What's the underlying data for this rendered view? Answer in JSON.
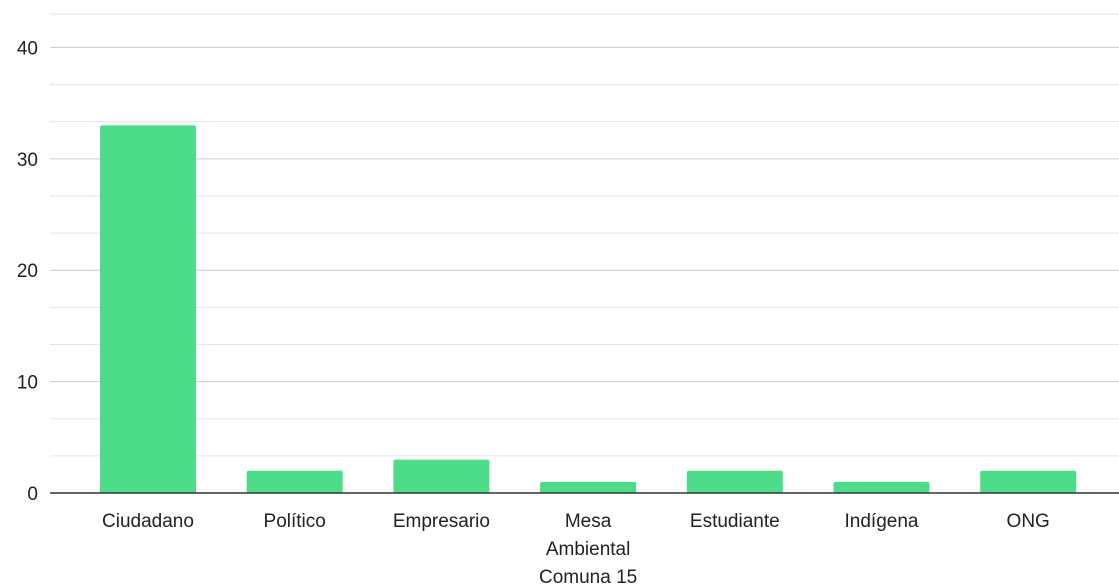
{
  "chart_data": {
    "type": "bar",
    "categories": [
      "Ciudadano",
      "Político",
      "Empresario",
      "Mesa Ambiental Comuna 15",
      "Estudiante",
      "Indígena",
      "ONG"
    ],
    "category_label_lines": [
      [
        "Ciudadano"
      ],
      [
        "Político"
      ],
      [
        "Empresario"
      ],
      [
        "Mesa",
        "Ambiental",
        "Comuna 15"
      ],
      [
        "Estudiante"
      ],
      [
        "Indígena"
      ],
      [
        "ONG"
      ]
    ],
    "values": [
      33,
      2,
      3,
      1,
      2,
      1,
      2
    ],
    "y_ticks": [
      0,
      10,
      20,
      30,
      40
    ],
    "y_tick_labels": [
      "0",
      "10",
      "20",
      "30",
      "40"
    ],
    "ylim": [
      0,
      43
    ],
    "minor_gridlines": true,
    "grid": true,
    "legend": "none",
    "title": "",
    "xlabel": "",
    "ylabel": "",
    "bar_color": "#4ddd8a",
    "grid_color": "#cccccc",
    "minor_grid_color": "#e6e6e6",
    "axis_color": "#333333"
  }
}
